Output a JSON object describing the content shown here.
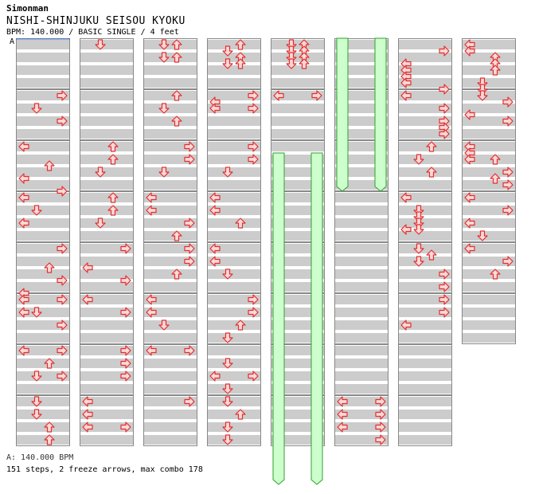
{
  "header": {
    "author": "Simonman",
    "title": "NISHI-SHINJUKU SEISOU KYOKU",
    "info": "BPM: 140.000 / BASIC SINGLE / 4 feet",
    "marker": "A"
  },
  "footer": {
    "bpm_line": "A: 140.000 BPM",
    "summary": "151 steps, 2 freeze arrows, max combo 178"
  },
  "colors": {
    "stripe": "#cccccc",
    "arrow_fill": "#ffd8d8",
    "arrow_stroke": "#e03030",
    "freeze_fill": "#ccffcc",
    "freeze_stroke": "#30a030",
    "border": "#888888"
  },
  "chart_data": {
    "type": "step-chart",
    "lanes": [
      "left",
      "down",
      "up",
      "right"
    ],
    "columns": 8,
    "measures_per_column": 8,
    "rows_per_measure": 4,
    "total_measures": 62,
    "freezes": [
      {
        "lane": "left",
        "start_row": 18,
        "end_row": 70
      },
      {
        "lane": "right",
        "start_row": 18,
        "end_row": 70
      },
      {
        "lane": "left",
        "start_row": 0,
        "end_row": 24
      },
      {
        "lane": "right",
        "start_row": 0,
        "end_row": 24
      }
    ],
    "notes": [
      [
        [
          8,
          "right"
        ],
        [
          10,
          "down"
        ],
        [
          12,
          "right"
        ],
        [
          16,
          "left"
        ],
        [
          19,
          "up"
        ],
        [
          21,
          "left"
        ],
        [
          23,
          "right"
        ],
        [
          24,
          "left"
        ],
        [
          26,
          "down"
        ],
        [
          28,
          "left"
        ],
        [
          32,
          "right"
        ],
        [
          35,
          "up"
        ],
        [
          37,
          "right"
        ],
        [
          39,
          "left"
        ],
        [
          40,
          "left"
        ],
        [
          40,
          "right"
        ],
        [
          42,
          "down"
        ],
        [
          42,
          "left"
        ],
        [
          44,
          "right"
        ],
        [
          48,
          "left"
        ],
        [
          48,
          "right"
        ],
        [
          50,
          "up"
        ],
        [
          52,
          "down"
        ],
        [
          52,
          "right"
        ],
        [
          56,
          "down"
        ],
        [
          58,
          "down"
        ],
        [
          60,
          "up"
        ],
        [
          62,
          "up"
        ]
      ],
      [
        [
          0,
          "down"
        ],
        [
          16,
          "up"
        ],
        [
          18,
          "up"
        ],
        [
          20,
          "down"
        ],
        [
          24,
          "up"
        ],
        [
          26,
          "up"
        ],
        [
          28,
          "down"
        ],
        [
          32,
          "right"
        ],
        [
          35,
          "left"
        ],
        [
          37,
          "right"
        ],
        [
          40,
          "left"
        ],
        [
          42,
          "right"
        ],
        [
          48,
          "right"
        ],
        [
          50,
          "right"
        ],
        [
          52,
          "right"
        ],
        [
          56,
          "left"
        ],
        [
          58,
          "left"
        ],
        [
          60,
          "left"
        ],
        [
          60,
          "right"
        ]
      ],
      [
        [
          0,
          "down"
        ],
        [
          0,
          "up"
        ],
        [
          2,
          "down"
        ],
        [
          2,
          "up"
        ],
        [
          8,
          "up"
        ],
        [
          10,
          "down"
        ],
        [
          12,
          "up"
        ],
        [
          16,
          "right"
        ],
        [
          18,
          "right"
        ],
        [
          20,
          "down"
        ],
        [
          24,
          "left"
        ],
        [
          26,
          "left"
        ],
        [
          28,
          "right"
        ],
        [
          30,
          "up"
        ],
        [
          32,
          "right"
        ],
        [
          34,
          "right"
        ],
        [
          36,
          "up"
        ],
        [
          40,
          "left"
        ],
        [
          42,
          "left"
        ],
        [
          44,
          "down"
        ],
        [
          48,
          "left"
        ],
        [
          48,
          "right"
        ],
        [
          56,
          "right"
        ]
      ],
      [
        [
          0,
          "up"
        ],
        [
          1,
          "down"
        ],
        [
          2,
          "up"
        ],
        [
          3,
          "down"
        ],
        [
          3,
          "up"
        ],
        [
          8,
          "right"
        ],
        [
          9,
          "left"
        ],
        [
          10,
          "left"
        ],
        [
          10,
          "right"
        ],
        [
          16,
          "right"
        ],
        [
          18,
          "right"
        ],
        [
          20,
          "down"
        ],
        [
          24,
          "left"
        ],
        [
          26,
          "left"
        ],
        [
          28,
          "up"
        ],
        [
          32,
          "left"
        ],
        [
          34,
          "left"
        ],
        [
          36,
          "down"
        ],
        [
          40,
          "right"
        ],
        [
          42,
          "right"
        ],
        [
          44,
          "up"
        ],
        [
          46,
          "down"
        ],
        [
          50,
          "down"
        ],
        [
          52,
          "left"
        ],
        [
          52,
          "right"
        ],
        [
          54,
          "down"
        ],
        [
          56,
          "down"
        ],
        [
          58,
          "up"
        ],
        [
          60,
          "down"
        ],
        [
          62,
          "down"
        ]
      ],
      [
        [
          0,
          "down"
        ],
        [
          0,
          "up"
        ],
        [
          1,
          "down"
        ],
        [
          1,
          "up"
        ],
        [
          2,
          "down"
        ],
        [
          2,
          "up"
        ],
        [
          3,
          "down"
        ],
        [
          3,
          "up"
        ],
        [
          8,
          "left"
        ],
        [
          8,
          "right"
        ]
      ],
      [
        [
          56,
          "left"
        ],
        [
          56,
          "right"
        ],
        [
          58,
          "left"
        ],
        [
          58,
          "right"
        ],
        [
          60,
          "left"
        ],
        [
          60,
          "right"
        ],
        [
          62,
          "right"
        ]
      ],
      [
        [
          1,
          "right"
        ],
        [
          3,
          "left"
        ],
        [
          4,
          "left"
        ],
        [
          5,
          "left"
        ],
        [
          6,
          "left"
        ],
        [
          7,
          "right"
        ],
        [
          8,
          "left"
        ],
        [
          10,
          "right"
        ],
        [
          12,
          "right"
        ],
        [
          13,
          "right"
        ],
        [
          14,
          "right"
        ],
        [
          16,
          "up"
        ],
        [
          18,
          "down"
        ],
        [
          20,
          "up"
        ],
        [
          24,
          "left"
        ],
        [
          26,
          "down"
        ],
        [
          27,
          "down"
        ],
        [
          28,
          "down"
        ],
        [
          29,
          "left"
        ],
        [
          29,
          "down"
        ],
        [
          32,
          "down"
        ],
        [
          33,
          "up"
        ],
        [
          34,
          "down"
        ],
        [
          36,
          "right"
        ],
        [
          38,
          "right"
        ],
        [
          40,
          "right"
        ],
        [
          42,
          "right"
        ],
        [
          44,
          "left"
        ]
      ],
      [
        [
          0,
          "left"
        ],
        [
          1,
          "left"
        ],
        [
          2,
          "up"
        ],
        [
          3,
          "up"
        ],
        [
          4,
          "up"
        ],
        [
          6,
          "down"
        ],
        [
          7,
          "down"
        ],
        [
          8,
          "down"
        ],
        [
          9,
          "right"
        ],
        [
          11,
          "left"
        ],
        [
          12,
          "right"
        ],
        [
          16,
          "left"
        ],
        [
          17,
          "left"
        ],
        [
          18,
          "left"
        ],
        [
          18,
          "up"
        ],
        [
          20,
          "right"
        ],
        [
          21,
          "up"
        ],
        [
          22,
          "right"
        ],
        [
          24,
          "left"
        ],
        [
          26,
          "right"
        ],
        [
          28,
          "left"
        ],
        [
          30,
          "down"
        ],
        [
          32,
          "left"
        ],
        [
          34,
          "right"
        ],
        [
          36,
          "up"
        ]
      ]
    ]
  }
}
